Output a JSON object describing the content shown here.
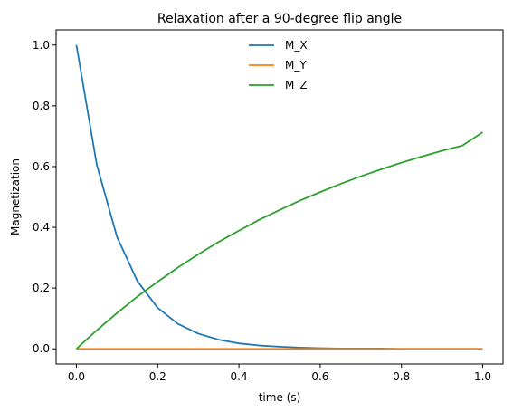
{
  "chart_data": {
    "type": "line",
    "title": "Relaxation after a 90-degree flip angle",
    "xlabel": "time (s)",
    "ylabel": "Magnetization",
    "xlim": [
      -0.05,
      1.05
    ],
    "ylim": [
      -0.05,
      1.05
    ],
    "xticks": [
      0.0,
      0.2,
      0.4,
      0.6,
      0.8,
      1.0
    ],
    "xtick_labels": [
      "0.0",
      "0.2",
      "0.4",
      "0.6",
      "0.8",
      "1.0"
    ],
    "yticks": [
      0.0,
      0.2,
      0.4,
      0.6,
      0.8,
      1.0
    ],
    "ytick_labels": [
      "0.0",
      "0.2",
      "0.4",
      "0.6",
      "0.8",
      "1.0"
    ],
    "grid": false,
    "legend_position": "top-center",
    "x": [
      0.0,
      0.05,
      0.1,
      0.15,
      0.2,
      0.25,
      0.3,
      0.35,
      0.4,
      0.45,
      0.5,
      0.55,
      0.6,
      0.65,
      0.7,
      0.75,
      0.8,
      0.85,
      0.9,
      0.95,
      1.0
    ],
    "series": [
      {
        "name": "M_X",
        "color": "#1f77b4",
        "values": [
          1.0,
          0.607,
          0.368,
          0.223,
          0.135,
          0.082,
          0.05,
          0.03,
          0.018,
          0.011,
          0.007,
          0.004,
          0.002,
          0.001,
          0.001,
          0.001,
          0.0,
          0.0,
          0.0,
          0.0,
          0.0
        ]
      },
      {
        "name": "M_Y",
        "color": "#ff7f0e",
        "values": [
          0.0,
          0.0,
          0.0,
          0.0,
          0.0,
          0.0,
          0.0,
          0.0,
          0.0,
          0.0,
          0.0,
          0.0,
          0.0,
          0.0,
          0.0,
          0.0,
          0.0,
          0.0,
          0.0,
          0.0,
          0.0
        ]
      },
      {
        "name": "M_Z",
        "color": "#2ca02c",
        "values": [
          0.0,
          0.061,
          0.118,
          0.172,
          0.221,
          0.268,
          0.311,
          0.352,
          0.389,
          0.425,
          0.457,
          0.488,
          0.516,
          0.543,
          0.568,
          0.591,
          0.613,
          0.633,
          0.652,
          0.669,
          0.713
        ]
      }
    ]
  }
}
